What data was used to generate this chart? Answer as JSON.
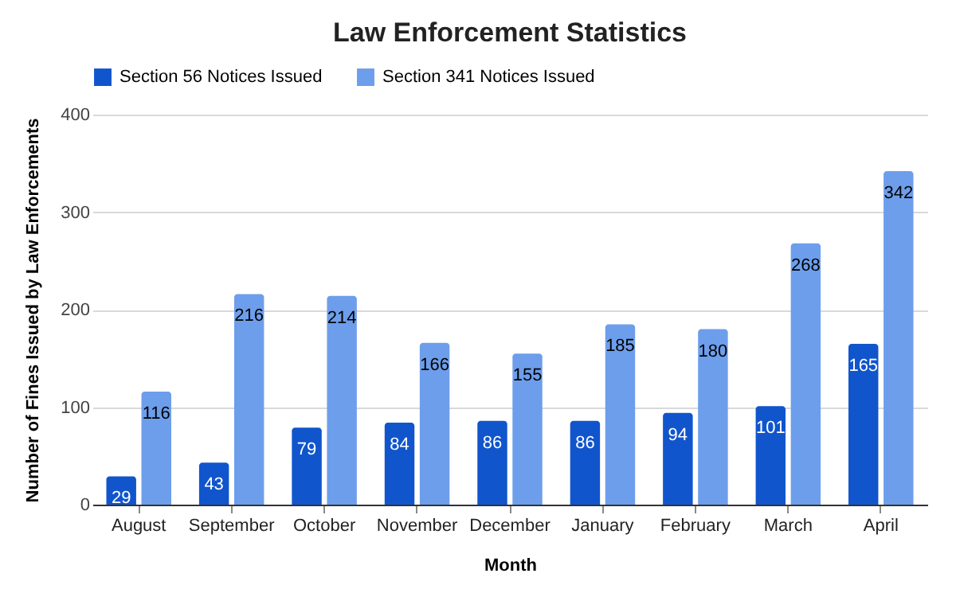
{
  "chart_data": {
    "type": "bar",
    "title": "Law Enforcement Statistics",
    "xlabel": "Month",
    "ylabel": "Number of Fines Issued by Law Enforcements",
    "categories": [
      "August",
      "September",
      "October",
      "November",
      "December",
      "January",
      "February",
      "March",
      "April"
    ],
    "series": [
      {
        "name": "Section 56 Notices Issued",
        "color": "#1155cc",
        "values": [
          29,
          43,
          79,
          84,
          86,
          86,
          94,
          101,
          165
        ]
      },
      {
        "name": "Section 341 Notices Issued",
        "color": "#6d9eeb",
        "values": [
          116,
          216,
          214,
          166,
          155,
          185,
          180,
          268,
          342
        ]
      }
    ],
    "ylim": [
      0,
      400
    ],
    "yticks": [
      0,
      100,
      200,
      300,
      400
    ],
    "grid": "y",
    "legend": "top",
    "data_labels": true
  }
}
